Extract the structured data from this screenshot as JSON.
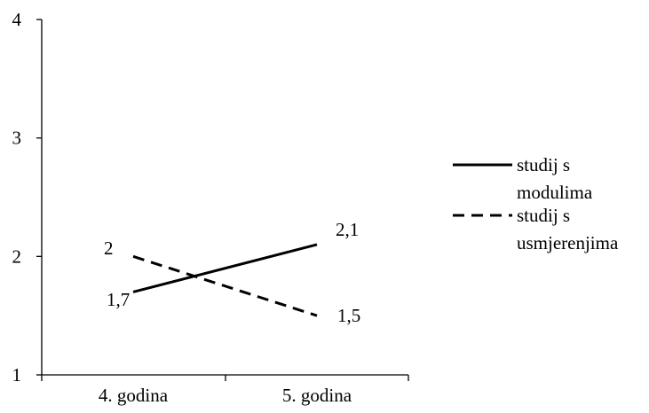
{
  "chart_data": {
    "type": "line",
    "categories": [
      "4. godina",
      "5. godina"
    ],
    "series": [
      {
        "name": "studij s modulima",
        "legend_lines": [
          "studij s",
          "modulima"
        ],
        "values": [
          1.7,
          2.1
        ],
        "value_labels": [
          "1,7",
          "2,1"
        ],
        "line_style": "solid",
        "color": "#000000"
      },
      {
        "name": "studij s usmjerenjima",
        "legend_lines": [
          "studij s",
          "usmjerenjima"
        ],
        "values": [
          2.0,
          1.5
        ],
        "value_labels": [
          "2",
          "1,5"
        ],
        "line_style": "dashed",
        "color": "#000000"
      }
    ],
    "yticks": [
      1,
      2,
      3,
      4
    ],
    "ylim": [
      1,
      4
    ],
    "title": "",
    "xlabel": "",
    "ylabel": "",
    "grid": false,
    "legend_position": "right"
  }
}
